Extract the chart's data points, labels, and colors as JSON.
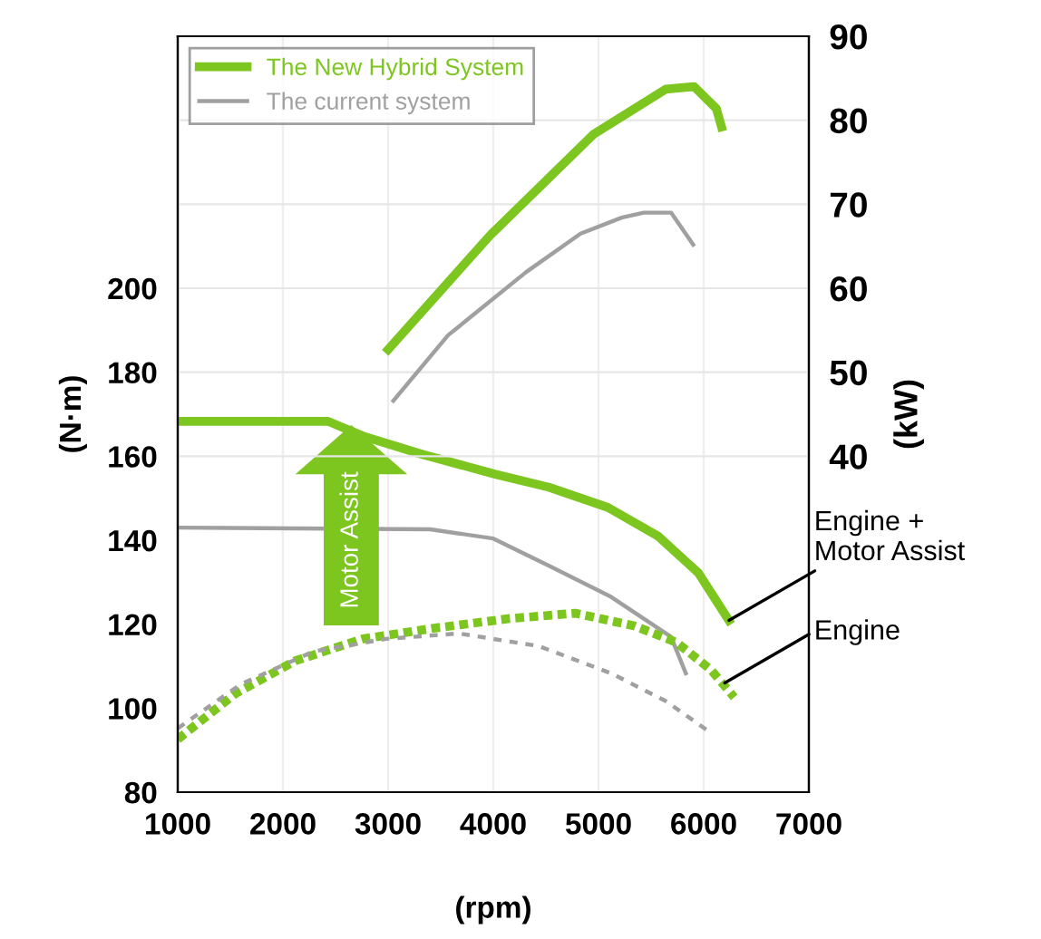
{
  "chart_data": {
    "type": "line",
    "xlabel": "(rpm)",
    "ylabel": "(N·m)",
    "y2label": "(kW)",
    "xlim": [
      1000,
      7000
    ],
    "xticks": [
      1000,
      2000,
      3000,
      4000,
      5000,
      6000,
      7000
    ],
    "ylim": [
      80,
      260
    ],
    "yticks": [
      80,
      100,
      120,
      140,
      160,
      180,
      200
    ],
    "y2lim": [
      0,
      90
    ],
    "y2ticks": [
      40,
      50,
      60,
      70,
      80,
      90
    ],
    "grid": true,
    "legend": "top left",
    "series": [
      {
        "name": "The New Hybrid System",
        "color": "#7dc51f",
        "axis": "y2",
        "line_style": "solid",
        "x": [
          3000,
          3970,
          4950,
          5640,
          5910,
          6120,
          6170
        ],
        "values": [
          52.7,
          66.3,
          78.3,
          83.7,
          84,
          81.4,
          79.2
        ]
      },
      {
        "name": "The current system",
        "color": "#a0a0a0",
        "axis": "y2",
        "line_style": "solid",
        "x": [
          3050,
          3570,
          4310,
          4830,
          5220,
          5430,
          5690,
          5900
        ],
        "values": [
          46.6,
          54.4,
          61.9,
          66.5,
          68.4,
          69.0,
          69.0,
          65.2
        ]
      },
      {
        "color": "#7dc51f",
        "line_style": "solid",
        "x": [
          1000,
          2430,
          2760,
          3330,
          4020,
          4530,
          5090,
          5570,
          5950,
          6240
        ],
        "values": [
          168.3,
          168.3,
          164.8,
          160.4,
          155.7,
          152.6,
          147.8,
          140.9,
          132.2,
          120.9
        ]
      },
      {
        "color": "#a0a0a0",
        "line_style": "solid",
        "x": [
          1000,
          3400,
          4000,
          4530,
          5120,
          5690,
          5830
        ],
        "values": [
          143,
          142.6,
          140.4,
          133.9,
          126.5,
          117,
          108.3
        ]
      },
      {
        "color": "#7dc51f",
        "line_style": "dotted",
        "x": [
          1000,
          1550,
          2120,
          2760,
          3450,
          4140,
          4780,
          5340,
          5740,
          6070,
          6290
        ],
        "values": [
          92.6,
          103.5,
          111.3,
          116.5,
          119.1,
          121.3,
          122.6,
          119.6,
          115.7,
          109.1,
          102.6
        ]
      },
      {
        "color": "#a0a0a0",
        "line_style": "dotted",
        "x": [
          1000,
          1600,
          2290,
          2980,
          3670,
          4430,
          5120,
          5640,
          6030
        ],
        "values": [
          95.2,
          105.7,
          113.5,
          116.5,
          117.8,
          114.8,
          108.3,
          101.7,
          94.8
        ]
      }
    ],
    "annotations": [
      {
        "text": "Engine +\nMotor Assist",
        "x": 6240,
        "y": 120.9
      },
      {
        "text": "Engine",
        "x": 6200,
        "y": 106
      },
      "Motor Assist"
    ]
  }
}
